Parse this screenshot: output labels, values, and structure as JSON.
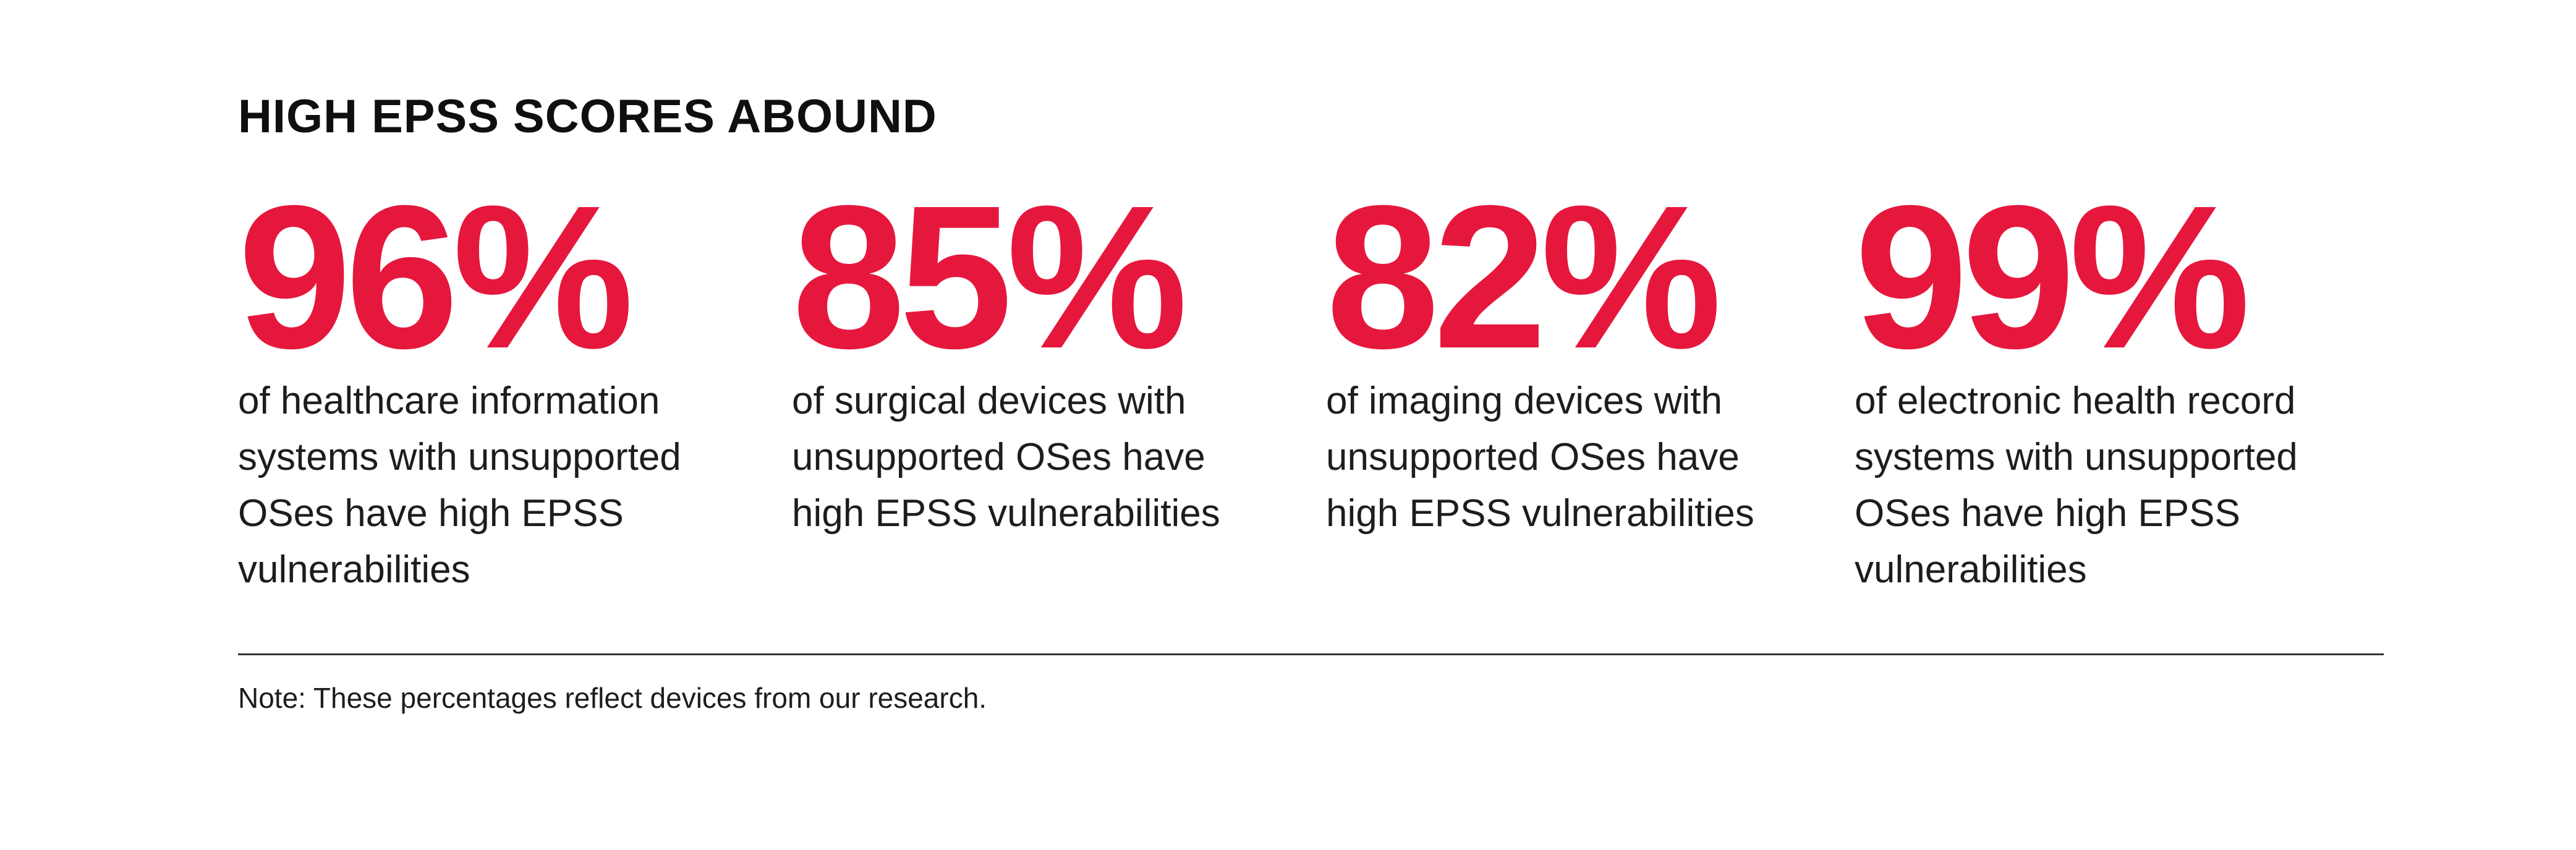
{
  "page": {
    "background_color": "#ffffff",
    "accent_color": "#e6173d",
    "text_color": "#1d1d1d"
  },
  "header": {
    "title": "HIGH EPSS SCORES ABOUND"
  },
  "stats": [
    {
      "value": "96%",
      "lines": [
        "of healthcare information",
        "systems with unsupported",
        "OSes have high EPSS",
        "vulnerabilities"
      ]
    },
    {
      "value": "85%",
      "lines": [
        "of surgical devices with",
        "unsupported OSes have",
        "high EPSS vulnerabilities"
      ]
    },
    {
      "value": "82%",
      "lines": [
        "of imaging devices with",
        "unsupported OSes have",
        "high EPSS vulnerabilities"
      ]
    },
    {
      "value": "99%",
      "lines": [
        "of electronic health record",
        "systems with unsupported",
        "OSes have high EPSS",
        "vulnerabilities"
      ]
    }
  ],
  "footnote": {
    "text": "Note: These percentages reflect devices from our research."
  }
}
